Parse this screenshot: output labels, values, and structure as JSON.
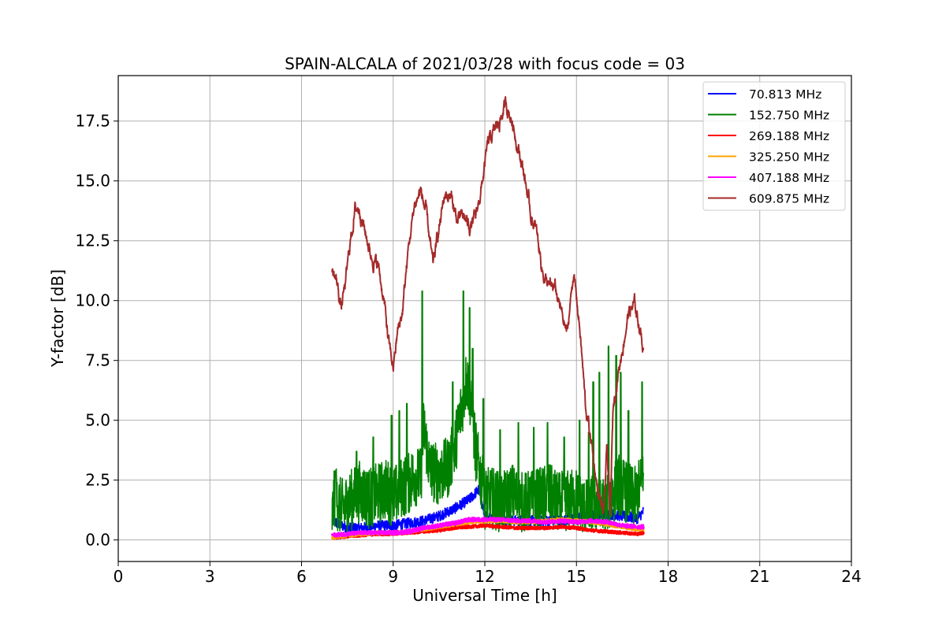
{
  "chart_data": {
    "type": "line",
    "title": "SPAIN-ALCALA of 2021/03/28 with focus code = 03",
    "xlabel": "Universal Time [h]",
    "ylabel": "Y-factor [dB]",
    "xlim": [
      0,
      24
    ],
    "ylim": [
      -0.9,
      19.4
    ],
    "xticks": [
      0,
      3,
      6,
      9,
      12,
      15,
      18,
      21,
      24
    ],
    "xtick_labels": [
      "0",
      "3",
      "6",
      "9",
      "12",
      "15",
      "18",
      "21",
      "24"
    ],
    "yticks": [
      0,
      2.5,
      5,
      7.5,
      10,
      12.5,
      15,
      17.5
    ],
    "ytick_labels": [
      "0.0",
      "2.5",
      "5.0",
      "7.5",
      "10.0",
      "12.5",
      "15.0",
      "17.5"
    ],
    "grid": true,
    "legend_position": "top-right",
    "series": [
      {
        "name": " 70.813 MHz",
        "color": "#0000ff",
        "x": [
          7.0,
          7.5,
          8.0,
          8.5,
          9.0,
          9.5,
          10.0,
          10.5,
          11.0,
          11.5,
          11.8,
          12.0,
          12.5,
          13.0,
          13.5,
          14.0,
          14.5,
          15.0,
          15.5,
          16.0,
          16.5,
          17.0,
          17.2
        ],
        "y": [
          0.8,
          0.5,
          0.5,
          0.6,
          0.6,
          0.7,
          0.8,
          1.0,
          1.3,
          1.7,
          2.1,
          1.0,
          0.9,
          0.8,
          0.8,
          0.8,
          0.8,
          0.9,
          1.0,
          1.1,
          1.0,
          0.9,
          1.2
        ]
      },
      {
        "name": "152.750 MHz",
        "color": "#008000",
        "x": [
          7.0,
          7.1,
          7.3,
          7.6,
          7.9,
          8.2,
          8.5,
          8.8,
          9.0,
          9.3,
          9.5,
          9.7,
          9.9,
          10.0,
          10.2,
          10.5,
          10.8,
          11.0,
          11.2,
          11.4,
          11.5,
          11.7,
          12.0,
          12.3,
          12.6,
          12.9,
          13.2,
          13.5,
          13.8,
          14.1,
          14.4,
          14.7,
          15.0,
          15.3,
          15.6,
          15.9,
          16.2,
          16.4,
          16.6,
          16.9,
          17.1,
          17.2
        ],
        "y": [
          1.2,
          2.2,
          1.5,
          1.9,
          2.3,
          2.0,
          2.2,
          2.4,
          2.0,
          2.5,
          2.6,
          3.0,
          2.8,
          5.0,
          3.2,
          3.0,
          3.3,
          4.0,
          5.5,
          7.0,
          6.5,
          4.0,
          2.0,
          2.0,
          1.8,
          2.2,
          1.8,
          1.9,
          2.0,
          2.2,
          1.8,
          1.9,
          2.0,
          1.5,
          1.8,
          1.6,
          2.2,
          2.6,
          2.3,
          2.0,
          2.5,
          2.8
        ],
        "peaks": {
          "x": [
            7.12,
            7.8,
            8.35,
            8.95,
            9.2,
            9.45,
            9.95,
            10.95,
            11.3,
            11.5,
            11.6,
            11.95,
            12.5,
            13.1,
            13.6,
            14.05,
            14.6,
            15.1,
            15.4,
            15.55,
            15.75,
            16.05,
            16.3,
            16.45,
            16.7,
            17.15
          ],
          "y": [
            2.9,
            3.7,
            4.3,
            5.2,
            5.4,
            5.7,
            10.4,
            6.6,
            10.4,
            9.7,
            8.0,
            5.9,
            4.6,
            4.9,
            4.7,
            4.9,
            4.3,
            5.0,
            4.5,
            6.6,
            7.0,
            8.1,
            7.7,
            7.0,
            5.4,
            6.6
          ]
        }
      },
      {
        "name": "269.188 MHz",
        "color": "#ff0000",
        "x": [
          7.0,
          7.5,
          8.0,
          8.5,
          9.0,
          9.5,
          10.0,
          10.5,
          11.0,
          11.5,
          12.0,
          12.5,
          13.0,
          13.5,
          14.0,
          14.5,
          15.0,
          15.5,
          16.0,
          16.5,
          17.0,
          17.2
        ],
        "y": [
          0.1,
          0.15,
          0.2,
          0.25,
          0.25,
          0.3,
          0.35,
          0.4,
          0.5,
          0.55,
          0.6,
          0.55,
          0.5,
          0.5,
          0.5,
          0.55,
          0.5,
          0.4,
          0.35,
          0.3,
          0.25,
          0.3
        ]
      },
      {
        "name": "325.250 MHz",
        "color": "#ffa500",
        "x": [
          7.0,
          7.5,
          8.0,
          8.5,
          9.0,
          9.5,
          10.0,
          10.5,
          11.0,
          11.5,
          12.0,
          12.5,
          13.0,
          13.5,
          14.0,
          14.5,
          15.0,
          15.5,
          16.0,
          16.5,
          17.0,
          17.2
        ],
        "y": [
          0.1,
          0.2,
          0.25,
          0.3,
          0.3,
          0.35,
          0.45,
          0.55,
          0.65,
          0.75,
          0.8,
          0.8,
          0.75,
          0.75,
          0.8,
          0.85,
          0.8,
          0.75,
          0.65,
          0.55,
          0.45,
          0.45
        ]
      },
      {
        "name": "407.188 MHz",
        "color": "#ff00ff",
        "x": [
          7.0,
          7.5,
          8.0,
          8.5,
          9.0,
          9.5,
          10.0,
          10.5,
          11.0,
          11.5,
          12.0,
          12.5,
          13.0,
          13.5,
          14.0,
          14.5,
          15.0,
          15.5,
          16.0,
          16.5,
          17.0,
          17.2
        ],
        "y": [
          0.2,
          0.25,
          0.3,
          0.3,
          0.3,
          0.35,
          0.5,
          0.6,
          0.7,
          0.85,
          0.85,
          0.85,
          0.8,
          0.8,
          0.75,
          0.8,
          0.75,
          0.8,
          0.75,
          0.6,
          0.55,
          0.55
        ]
      },
      {
        "name": "609.875 MHz",
        "color": "#a52a2a",
        "x": [
          7.0,
          7.15,
          7.3,
          7.45,
          7.6,
          7.75,
          7.9,
          8.1,
          8.3,
          8.5,
          8.7,
          8.85,
          9.0,
          9.15,
          9.3,
          9.5,
          9.7,
          9.9,
          10.1,
          10.3,
          10.5,
          10.7,
          10.9,
          11.1,
          11.3,
          11.5,
          11.7,
          11.9,
          12.1,
          12.3,
          12.5,
          12.7,
          12.9,
          13.1,
          13.3,
          13.5,
          13.7,
          13.9,
          14.1,
          14.3,
          14.5,
          14.7,
          14.9,
          15.1,
          15.3,
          15.5,
          15.7,
          15.9,
          16.0,
          16.1,
          16.2,
          16.3,
          16.5,
          16.7,
          16.9,
          17.1,
          17.2
        ],
        "y": [
          11.2,
          10.8,
          9.7,
          10.8,
          12.5,
          13.8,
          13.9,
          12.8,
          11.8,
          11.5,
          10.0,
          8.2,
          7.2,
          8.7,
          9.5,
          12.2,
          14.0,
          14.6,
          13.5,
          11.4,
          13.0,
          14.5,
          14.3,
          13.3,
          13.5,
          13.1,
          13.4,
          14.8,
          16.5,
          17.0,
          17.6,
          18.2,
          17.5,
          16.4,
          15.2,
          13.6,
          12.8,
          11.2,
          10.5,
          10.5,
          9.5,
          8.6,
          11.2,
          9.0,
          5.5,
          4.0,
          2.0,
          1.0,
          4.0,
          0.8,
          5.5,
          6.5,
          8.0,
          9.5,
          9.8,
          8.8,
          7.8
        ]
      }
    ]
  }
}
